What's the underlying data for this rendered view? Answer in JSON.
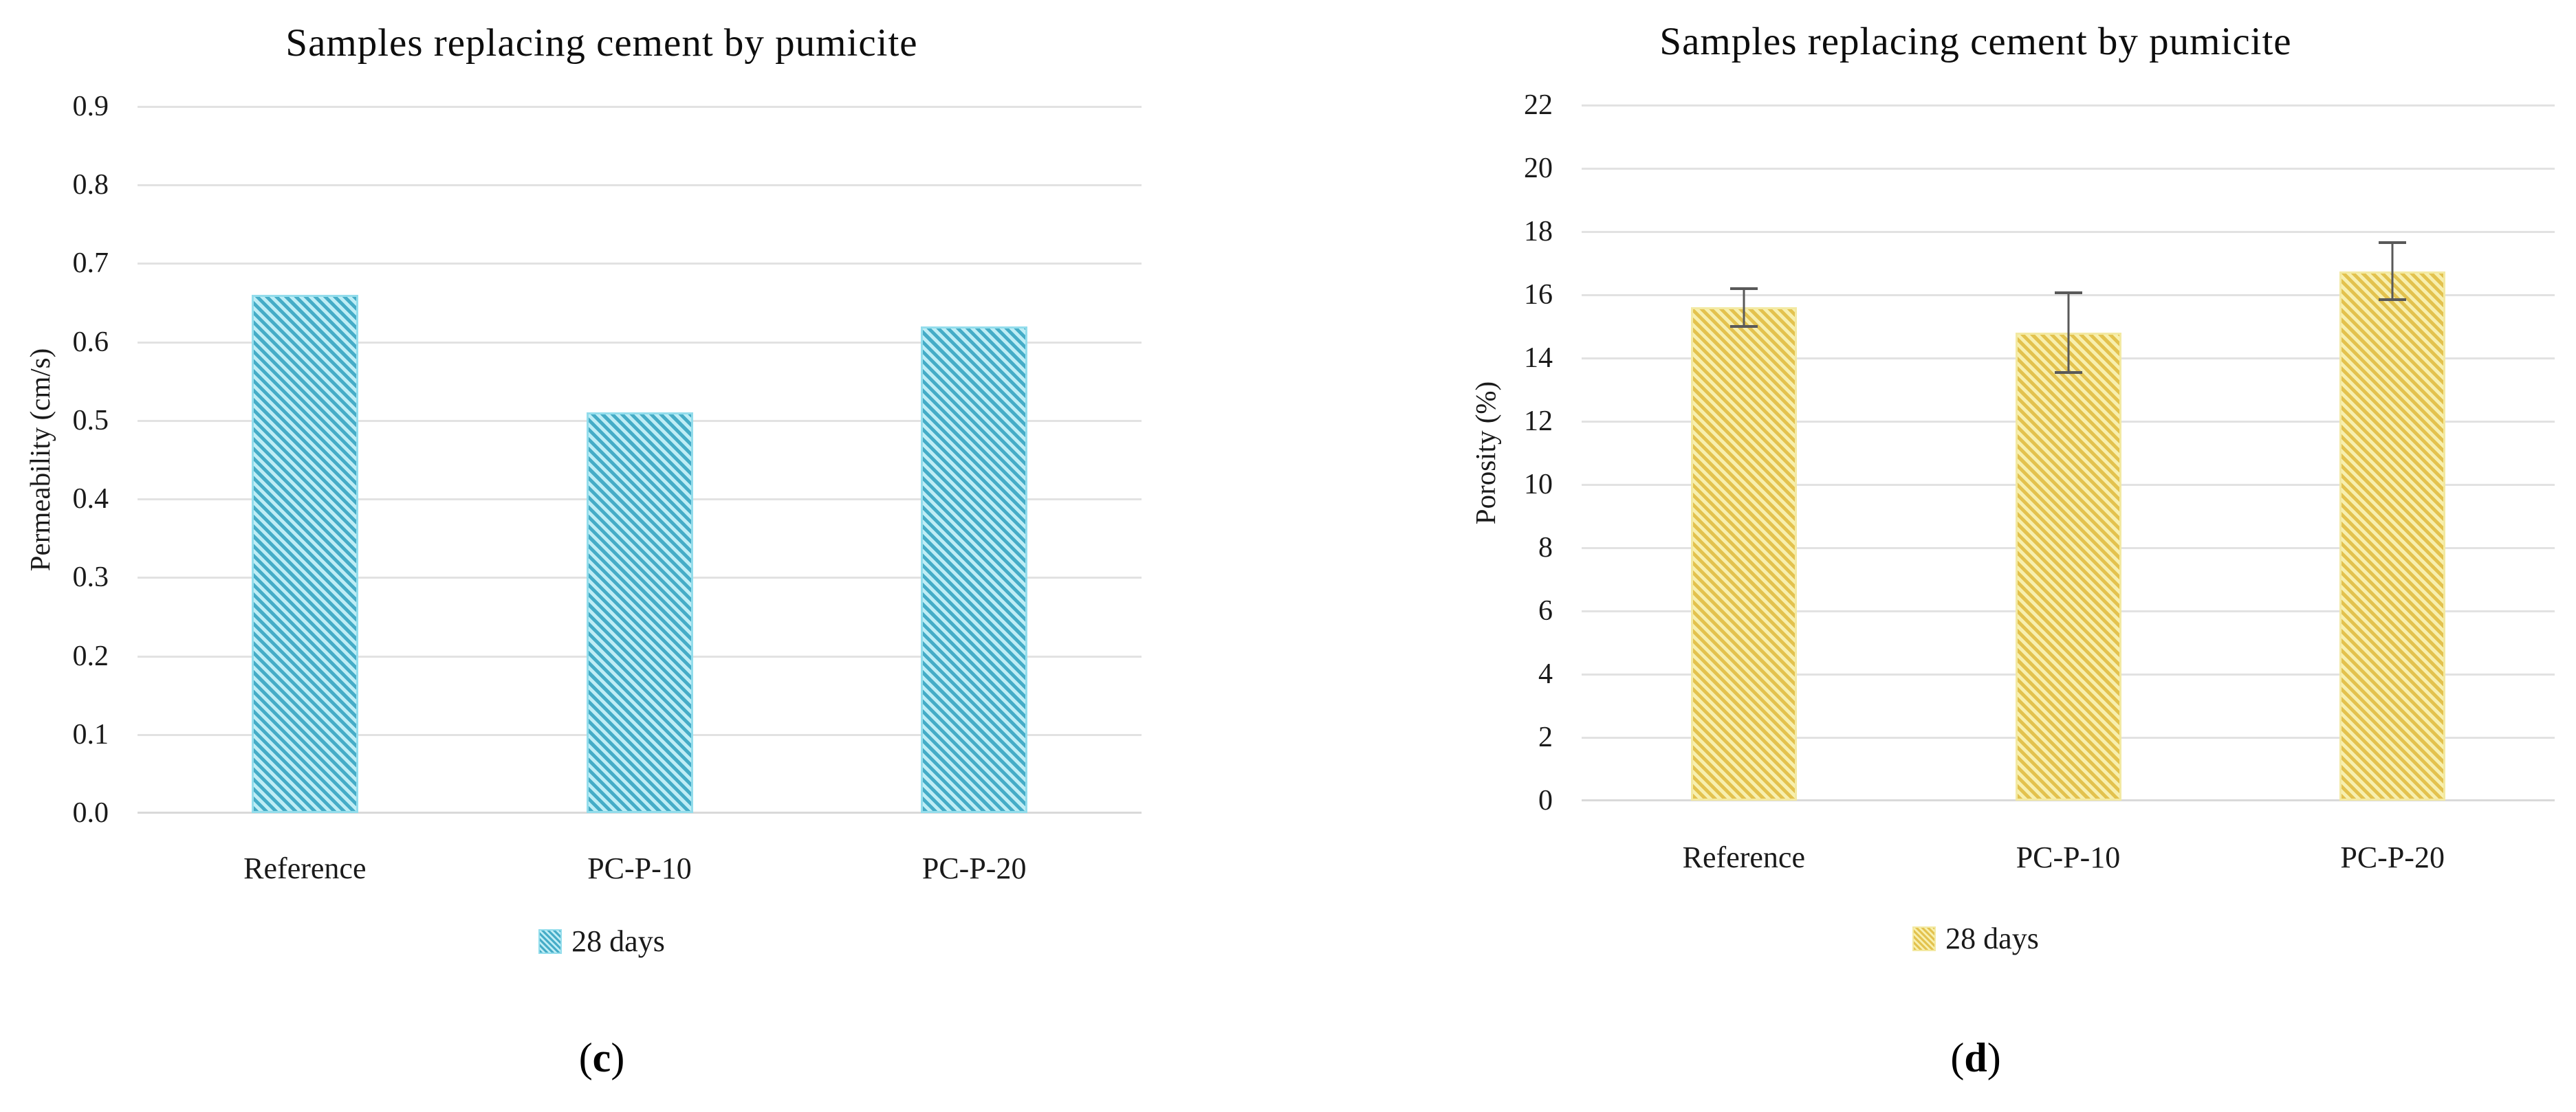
{
  "page": {
    "background": "#FFFFFF"
  },
  "chart_data": [
    {
      "id": "c",
      "type": "bar",
      "title": "Samples replacing cement by pumicite",
      "categories": [
        "Reference",
        "PC-P-10",
        "PC-P-20"
      ],
      "series": [
        {
          "name": "28 days",
          "values": [
            0.66,
            0.51,
            0.62
          ]
        }
      ],
      "error_bars": null,
      "xlabel": "",
      "ylabel": "Permeability (cm/s)",
      "ylim": [
        0,
        0.9
      ],
      "ytick_step": 0.1,
      "ytick_decimals": 1,
      "grid": true,
      "legend_position": "bottom",
      "caption": {
        "open": "(",
        "letter": "c",
        "close": ")"
      },
      "colors": {
        "hatch_dark": "#45ACC7",
        "hatch_light": "#BEEDF5",
        "bar_border": "#93DDEC",
        "gridline": "#E2E2E2",
        "axis_line": "#D9D9D9",
        "text": "#1A1A1A"
      }
    },
    {
      "id": "d",
      "type": "bar",
      "title": "Samples replacing cement by pumicite",
      "categories": [
        "Reference",
        "PC-P-10",
        "PC-P-20"
      ],
      "series": [
        {
          "name": "28 days",
          "values": [
            15.6,
            14.8,
            16.75
          ]
        }
      ],
      "error_bars": {
        "plus": [
          0.65,
          1.3,
          0.95
        ],
        "minus": [
          0.65,
          1.3,
          0.95
        ]
      },
      "xlabel": "",
      "ylabel": "Porosity (%)",
      "ylim": [
        0,
        22
      ],
      "ytick_step": 2,
      "ytick_decimals": 0,
      "grid": true,
      "legend_position": "bottom",
      "caption": {
        "open": "(",
        "letter": "d",
        "close": ")"
      },
      "colors": {
        "hatch_dark": "#E3C24E",
        "hatch_light": "#F7EFAE",
        "bar_border": "#F3E9A2",
        "gridline": "#E2E2E2",
        "axis_line": "#D9D9D9",
        "error_bar": "#595959",
        "text": "#1A1A1A"
      }
    }
  ]
}
